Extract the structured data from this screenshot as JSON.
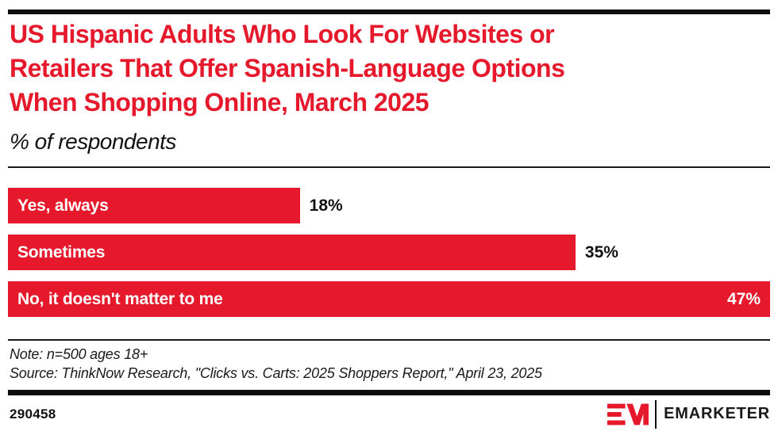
{
  "chart_data": {
    "type": "bar",
    "orientation": "horizontal",
    "title": "US Hispanic Adults Who Look For Websites or Retailers That Offer Spanish-Language Options When Shopping Online, March 2025",
    "title_lines": [
      "US Hispanic Adults Who Look For Websites or",
      "Retailers That Offer Spanish-Language Options",
      "When Shopping Online, March 2025"
    ],
    "subtitle": "% of respondents",
    "categories": [
      "Yes, always",
      "Sometimes",
      "No, it doesn't matter to me"
    ],
    "values": [
      18,
      35,
      47
    ],
    "value_labels": [
      "18%",
      "35%",
      "47%"
    ],
    "xlim": [
      0,
      47
    ],
    "bar_color": "#e5192b",
    "grid": false,
    "legend": "none"
  },
  "notes": {
    "note": "Note: n=500 ages 18+",
    "source": "Source: ThinkNow Research, \"Clicks vs. Carts: 2025 Shoppers Report,\" April 23, 2025"
  },
  "footer": {
    "chart_id": "290458",
    "brand_wordmark": "EMARKETER"
  },
  "colors": {
    "accent_red": "#e5192b",
    "rule_black": "#0d0d0d",
    "text_black": "#111111"
  }
}
